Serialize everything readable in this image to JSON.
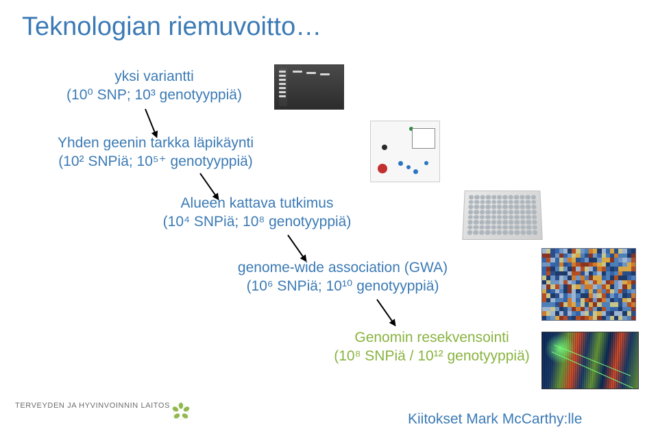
{
  "title": {
    "text": "Teknologian riemuvoitto…",
    "color": "#3b7ab5"
  },
  "steps": {
    "s1": {
      "line1": "yksi variantti",
      "line2": "(10⁰ SNP; 10³ genotyyppiä)",
      "color": "#3b7ab5"
    },
    "s2": {
      "line1": "Yhden geenin tarkka läpikäynti",
      "line2": "(10² SNPiä; 10⁵⁺ genotyyppiä)",
      "color": "#3b7ab5"
    },
    "s3": {
      "line1": "Alueen kattava tutkimus",
      "line2": "(10⁴ SNPiä; 10⁸ genotyyppiä)",
      "color": "#3b7ab5"
    },
    "s4": {
      "line1": "genome-wide association (GWA)",
      "line2": "(10⁶ SNPiä; 10¹⁰ genotyyppiä)",
      "color": "#3b7ab5"
    },
    "s5": {
      "line1": "Genomin resekvensointi",
      "line2": "(10⁸ SNPiä / 10¹² genotyyppiä)",
      "color": "#89b340"
    }
  },
  "thanks": {
    "text": "Kiitokset Mark McCarthy:lle",
    "color": "#3b7ab5"
  },
  "footer": {
    "text": "TERVEYDEN JA HYVINVOINNIN LAITOS",
    "accent": "#89b340"
  },
  "heatmap_palette": [
    "#1e3a6a",
    "#2a4e8a",
    "#3564a8",
    "#4d7fb9",
    "#6f95c2",
    "#9fb4d0",
    "#c9c588",
    "#d7a845",
    "#d07a2c",
    "#b34e22",
    "#8a3420"
  ]
}
